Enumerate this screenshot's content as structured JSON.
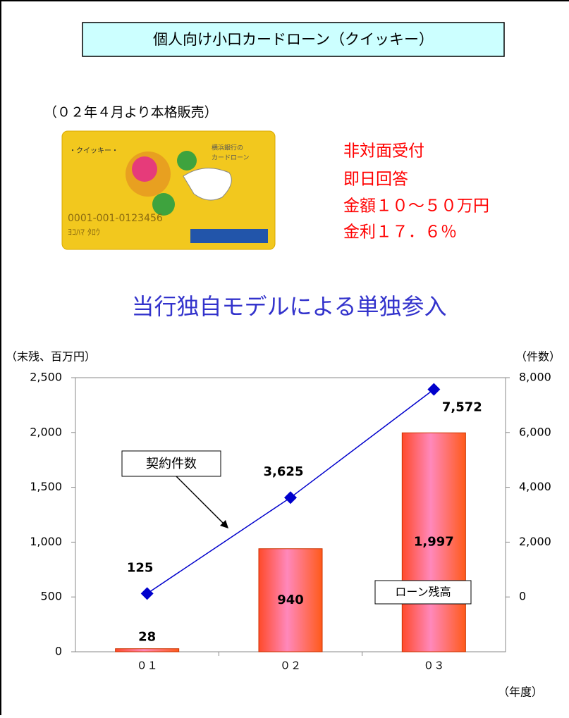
{
  "header": {
    "title": "個人向け小口カードローン（クイッキー）"
  },
  "note": "（０２年４月より本格販売）",
  "features": [
    "非対面受付",
    "即日回答",
    "金額１０～５０万円",
    "金利１７．６％"
  ],
  "headline": "当行独自モデルによる単独参入",
  "chart_data": {
    "type": "bar_line",
    "y_label": "（末残、百万円）",
    "y2_label": "（件数）",
    "x_label": "（年度）",
    "categories": [
      "０１",
      "０２",
      "０３"
    ],
    "ylim": [
      0,
      2500
    ],
    "yticks": [
      0,
      500,
      {
        "value": 1000,
        "label": "1,000"
      },
      {
        "value": 1500,
        "label": "1,500"
      },
      {
        "value": 2000,
        "label": "2,000"
      },
      {
        "value": 2500,
        "label": "2,500"
      }
    ],
    "y2lim": [
      -2000,
      8000
    ],
    "y2ticks": [
      0,
      {
        "value": 2000,
        "label": "2,000"
      },
      {
        "value": 4000,
        "label": "4,000"
      },
      {
        "value": 6000,
        "label": "6,000"
      },
      {
        "value": 8000,
        "label": "8,000"
      }
    ],
    "series": [
      {
        "name": "ローン残高",
        "type": "bar",
        "color": "#ff6666",
        "values": [
          28,
          940,
          1997
        ],
        "value_labels": [
          "28",
          "940",
          "1,997"
        ]
      },
      {
        "name": "契約件数",
        "type": "line",
        "axis": "y2",
        "color": "#0000cc",
        "values": [
          125,
          3625,
          7572
        ],
        "value_labels": [
          "125",
          "3,625",
          "7,572"
        ]
      }
    ]
  }
}
